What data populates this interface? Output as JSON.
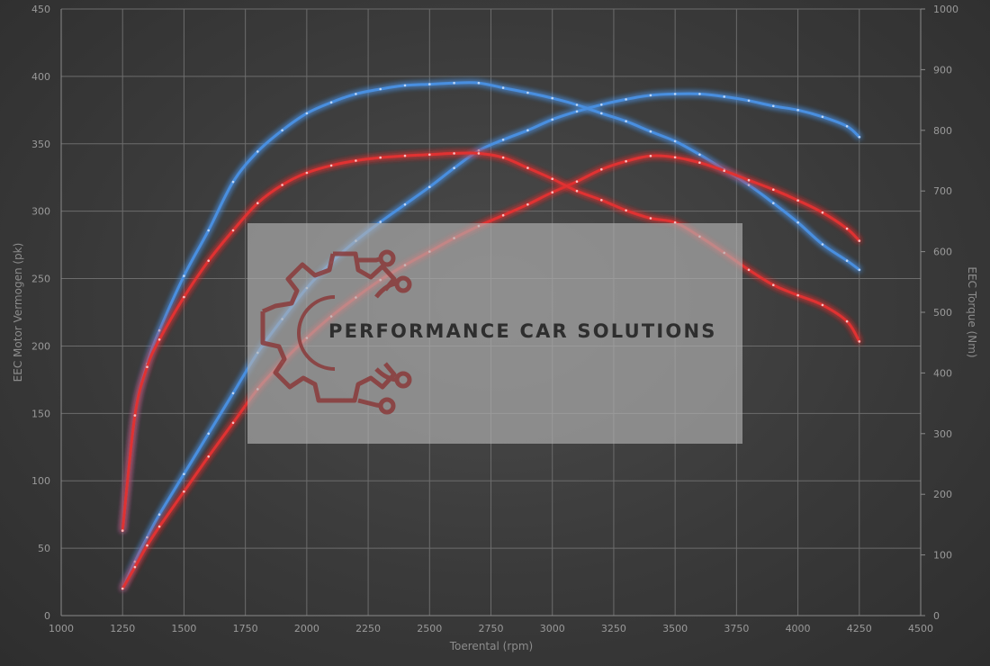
{
  "chart_data": {
    "type": "line",
    "xlabel": "Toerental (rpm)",
    "ylabel_left": "EEC Motor Vermogen (pk)",
    "ylabel_right": "EEC Torque (Nm)",
    "xlim": [
      1000,
      4500
    ],
    "ylim_left": [
      0,
      450
    ],
    "ylim_right": [
      0,
      1000
    ],
    "x_ticks": [
      1000,
      1250,
      1500,
      1750,
      2000,
      2250,
      2500,
      2750,
      3000,
      3250,
      3500,
      3750,
      4000,
      4250,
      4500
    ],
    "y_left_ticks": [
      0,
      50,
      100,
      150,
      200,
      250,
      300,
      350,
      400,
      450
    ],
    "y_right_ticks": [
      0,
      100,
      200,
      300,
      400,
      500,
      600,
      700,
      800,
      900,
      1000
    ],
    "grid": true,
    "series": [
      {
        "color": "#4a8fe0",
        "axis": "left",
        "x": [
          1250,
          1300,
          1350,
          1400,
          1500,
          1600,
          1700,
          1800,
          1900,
          2000,
          2100,
          2200,
          2300,
          2400,
          2500,
          2600,
          2700,
          2800,
          2900,
          3000,
          3100,
          3200,
          3300,
          3400,
          3500,
          3600,
          3700,
          3800,
          3900,
          4000,
          4100,
          4200,
          4250
        ],
        "y": [
          20,
          40,
          58,
          75,
          105,
          135,
          165,
          195,
          220,
          243,
          262,
          278,
          292,
          305,
          318,
          332,
          345,
          353,
          360,
          368,
          374,
          379,
          383,
          386,
          387,
          387,
          385,
          382,
          378,
          375,
          370,
          363,
          355
        ]
      },
      {
        "color": "#4a8fe0",
        "axis": "right",
        "x": [
          1250,
          1300,
          1350,
          1400,
          1500,
          1600,
          1700,
          1800,
          1900,
          2000,
          2100,
          2200,
          2300,
          2400,
          2500,
          2600,
          2700,
          2800,
          2900,
          3000,
          3100,
          3200,
          3300,
          3400,
          3500,
          3600,
          3700,
          3800,
          3900,
          4000,
          4100,
          4200,
          4250
        ],
        "y": [
          140,
          330,
          415,
          470,
          560,
          635,
          715,
          765,
          800,
          828,
          846,
          860,
          868,
          874,
          876,
          878,
          878,
          870,
          862,
          853,
          842,
          828,
          815,
          798,
          782,
          760,
          735,
          710,
          680,
          648,
          612,
          585,
          570
        ]
      },
      {
        "color": "#e03030",
        "axis": "left",
        "x": [
          1250,
          1300,
          1350,
          1400,
          1500,
          1600,
          1700,
          1800,
          1900,
          2000,
          2100,
          2200,
          2300,
          2400,
          2500,
          2600,
          2700,
          2800,
          2900,
          3000,
          3100,
          3200,
          3300,
          3400,
          3500,
          3600,
          3700,
          3800,
          3900,
          4000,
          4100,
          4200,
          4250
        ],
        "y": [
          20,
          36,
          52,
          66,
          92,
          118,
          143,
          168,
          188,
          206,
          222,
          236,
          249,
          260,
          270,
          280,
          289,
          297,
          305,
          314,
          322,
          331,
          337,
          341,
          340,
          336,
          330,
          323,
          316,
          308,
          299,
          287,
          278
        ]
      },
      {
        "color": "#e03030",
        "axis": "right",
        "x": [
          1250,
          1300,
          1350,
          1400,
          1500,
          1600,
          1700,
          1800,
          1900,
          2000,
          2100,
          2200,
          2300,
          2400,
          2500,
          2600,
          2700,
          2800,
          2900,
          3000,
          3100,
          3200,
          3300,
          3400,
          3500,
          3600,
          3700,
          3800,
          3900,
          4000,
          4100,
          4200,
          4250
        ],
        "y": [
          140,
          330,
          410,
          455,
          525,
          585,
          635,
          680,
          710,
          730,
          742,
          750,
          755,
          758,
          760,
          762,
          762,
          755,
          738,
          720,
          700,
          685,
          668,
          655,
          648,
          625,
          598,
          570,
          545,
          528,
          512,
          485,
          452
        ]
      }
    ]
  },
  "watermark": {
    "text": "PERFORMANCE CAR SOLUTIONS",
    "colors": {
      "panel": "#b2b2b2",
      "text": "#2e2e2e",
      "logo": "#8a3a3a"
    }
  }
}
